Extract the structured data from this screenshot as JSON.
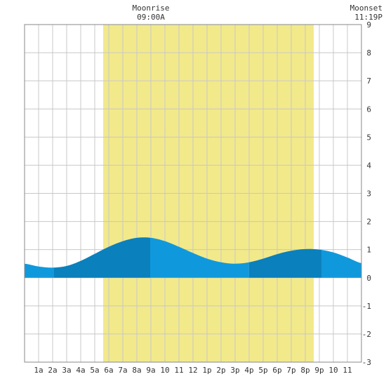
{
  "colors": {
    "daylight": "#f2e98b",
    "grid": "#c8c8c8",
    "water_light": "#0f99dc",
    "water_dark": "#0a80bd",
    "frame": "#888888"
  },
  "moon": {
    "moonrise_title": "Moonrise",
    "moonrise_time": "09:00A",
    "moonset_title": "Moonset",
    "moonset_time": "11:19P"
  },
  "chart_data": {
    "type": "area",
    "xlabel": "",
    "ylabel": "",
    "x_range": [
      0,
      24
    ],
    "ylim": [
      -3,
      9
    ],
    "x_tick_labels": [
      "1a",
      "2a",
      "3a",
      "4a",
      "5a",
      "6a",
      "7a",
      "8a",
      "9a",
      "10",
      "11",
      "12",
      "1p",
      "2p",
      "3p",
      "4p",
      "5p",
      "6p",
      "7p",
      "8p",
      "9p",
      "10",
      "11"
    ],
    "y_tick_labels": [
      "-3",
      "-2",
      "-1",
      "0",
      "1",
      "2",
      "3",
      "4",
      "5",
      "6",
      "7",
      "8",
      "9"
    ],
    "daylight_hours": [
      5.6,
      20.6
    ],
    "moonrise_hour": 9.0,
    "moonset_hour": 23.3,
    "grid": true,
    "series": [
      {
        "x": [
          0,
          1,
          2,
          3,
          4,
          5,
          6,
          7,
          8,
          9,
          10,
          11,
          12,
          13,
          14,
          15,
          16,
          17,
          18,
          19,
          20,
          21,
          22,
          23,
          24
        ],
        "values": [
          0.5,
          0.4,
          0.36,
          0.42,
          0.6,
          0.85,
          1.1,
          1.3,
          1.42,
          1.42,
          1.3,
          1.1,
          0.88,
          0.68,
          0.55,
          0.5,
          0.55,
          0.68,
          0.84,
          0.96,
          1.02,
          1.0,
          0.9,
          0.72,
          0.52
        ]
      }
    ],
    "shading_bands": [
      {
        "from": 0,
        "to": 2.1,
        "shade": "light"
      },
      {
        "from": 2.1,
        "to": 8.95,
        "shade": "dark"
      },
      {
        "from": 8.95,
        "to": 15.99,
        "shade": "light"
      },
      {
        "from": 15.99,
        "to": 21.18,
        "shade": "dark"
      },
      {
        "from": 21.18,
        "to": 24,
        "shade": "light"
      }
    ]
  }
}
